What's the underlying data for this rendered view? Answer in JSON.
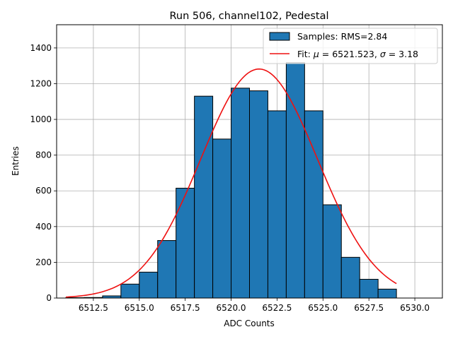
{
  "chart_data": {
    "type": "bar",
    "title": "Run 506, channel102, Pedestal",
    "xlabel": "ADC Counts",
    "ylabel": "Entries",
    "xlim": [
      6510.5,
      6531.5
    ],
    "ylim": [
      0,
      1530
    ],
    "xticks": [
      6512.5,
      6515.0,
      6517.5,
      6520.0,
      6522.5,
      6525.0,
      6527.5,
      6530.0
    ],
    "xtick_labels": [
      "6512.5",
      "6515.0",
      "6517.5",
      "6520.0",
      "6522.5",
      "6525.0",
      "6527.5",
      "6530.0"
    ],
    "yticks": [
      0,
      200,
      400,
      600,
      800,
      1000,
      1200,
      1400
    ],
    "ytick_labels": [
      "0",
      "200",
      "400",
      "600",
      "800",
      "1000",
      "1200",
      "1400"
    ],
    "grid": true,
    "legend_position": "top-right",
    "histogram": {
      "name": "Samples: RMS=2.84",
      "color": "#1f77b4",
      "edge_color": "#000000",
      "bin_edges": [
        6511,
        6512,
        6513,
        6514,
        6515,
        6516,
        6517,
        6518,
        6519,
        6520,
        6521,
        6522,
        6523,
        6524,
        6525,
        6526,
        6527,
        6528,
        6529,
        6530,
        6531
      ],
      "counts": [
        2,
        3,
        12,
        78,
        145,
        322,
        615,
        1130,
        890,
        1175,
        1160,
        1048,
        1318,
        1048,
        522,
        228,
        105,
        50,
        0,
        0
      ]
    },
    "fit": {
      "name_prefix": "Fit: ",
      "name_mu": "μ",
      "name_mid": " = 6521.523, ",
      "name_sigma": "σ",
      "name_suffix": " = 3.18",
      "color": "#ee1111",
      "mu": 6521.523,
      "sigma": 3.18,
      "amplitude": 1282,
      "x_range": [
        6511,
        6529
      ]
    }
  }
}
